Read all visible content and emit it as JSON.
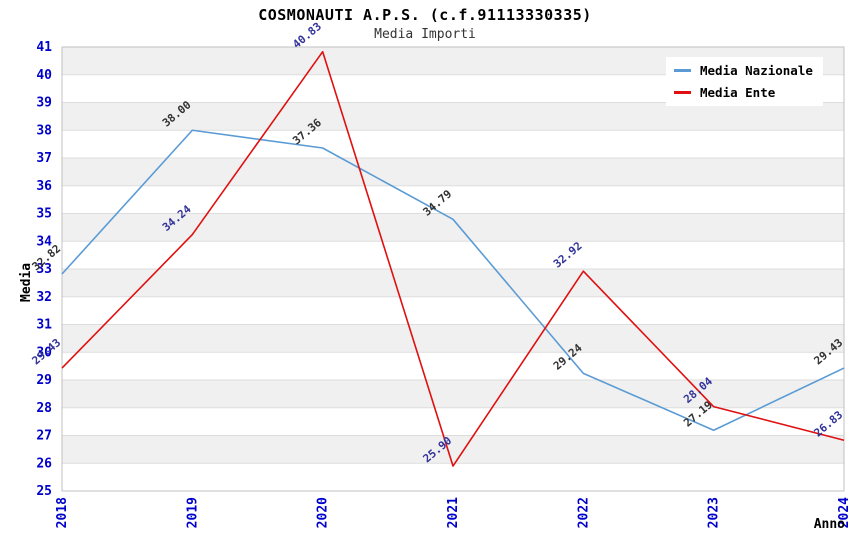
{
  "title": "COSMONAUTI A.P.S. (c.f.91113330335)",
  "subtitle": "Media Importi",
  "chart_data": {
    "type": "line",
    "title": "COSMONAUTI A.P.S. (c.f.91113330335)",
    "subtitle": "Media Importi",
    "x": [
      "2018",
      "2019",
      "2020",
      "2021",
      "2022",
      "2023",
      "2024"
    ],
    "series": [
      {
        "name": "Media Nazionale",
        "color": "#5b9bd5",
        "label_color": "#333333",
        "values": [
          32.82,
          38.0,
          37.36,
          34.79,
          29.24,
          27.19,
          29.43
        ]
      },
      {
        "name": "Media Ente",
        "color": "#e01010",
        "label_color": "#333399",
        "values": [
          29.43,
          34.24,
          40.83,
          25.9,
          32.92,
          28.04,
          26.83
        ]
      }
    ],
    "xlabel": "Anno",
    "ylabel": "Media",
    "ylim": [
      25,
      41
    ],
    "y_tick_step": 1,
    "legend_position": "top-right",
    "grid": "horizontal-bands-alternating",
    "tick_label_color": "#0000cc",
    "band_color": "#f0f0f0",
    "grid_line_color": "#dddddd",
    "plot_border_color": "#c0c0c0",
    "data_label_rotation": -40,
    "x_tick_rotation": -90
  }
}
